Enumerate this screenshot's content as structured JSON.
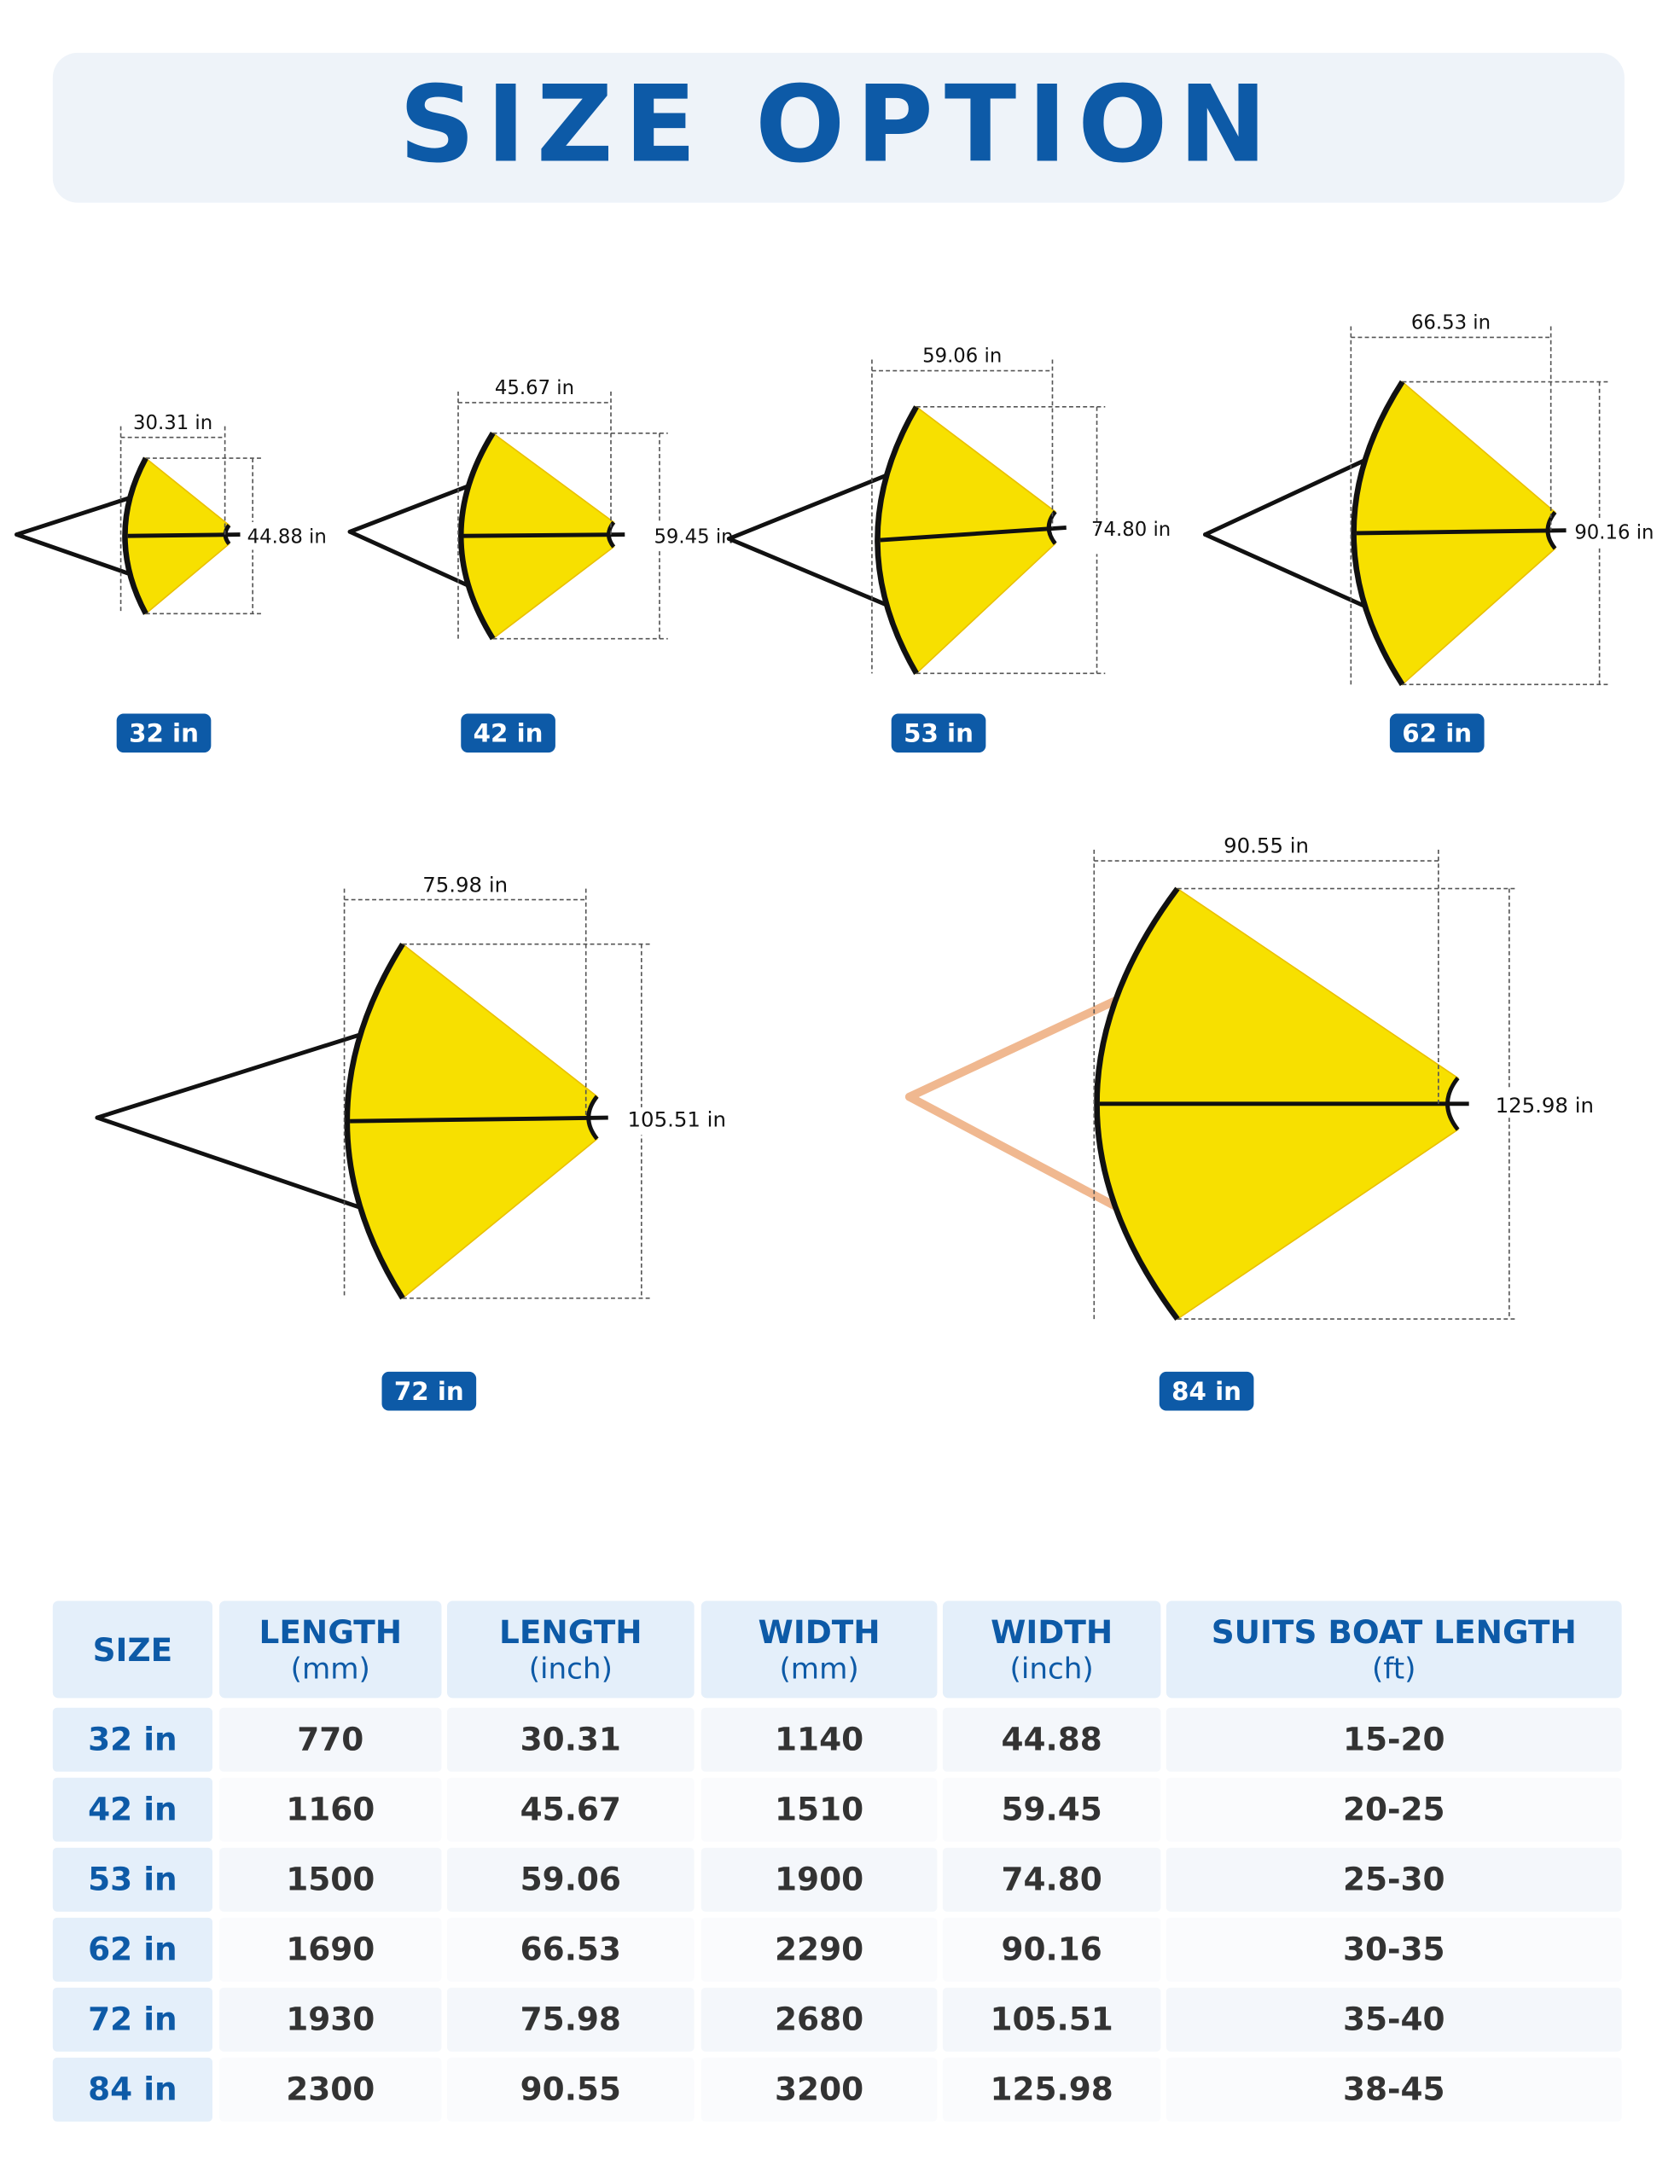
{
  "header": {
    "title": "SIZE OPTION"
  },
  "products": [
    {
      "label": "32 in",
      "length": "30.31 in",
      "width": "44.88 in"
    },
    {
      "label": "42 in",
      "length": "45.67 in",
      "width": "59.45 in"
    },
    {
      "label": "53 in",
      "length": "59.06 in",
      "width": "74.80 in"
    },
    {
      "label": "62 in",
      "length": "66.53 in",
      "width": "90.16 in"
    },
    {
      "label": "72 in",
      "length": "75.98 in",
      "width": "105.51 in"
    },
    {
      "label": "84 in",
      "length": "90.55 in",
      "width": "125.98 in"
    }
  ],
  "table": {
    "columns": [
      {
        "title": "SIZE"
      },
      {
        "title": "LENGTH",
        "unit": "(mm)"
      },
      {
        "title": "LENGTH",
        "unit": "(inch)"
      },
      {
        "title": "WIDTH",
        "unit": "(mm)"
      },
      {
        "title": "WIDTH",
        "unit": "(inch)"
      },
      {
        "title": "SUITS BOAT LENGTH",
        "unit": "(ft)"
      }
    ],
    "rows": [
      [
        "32 in",
        "770",
        "30.31",
        "1140",
        "44.88",
        "15-20"
      ],
      [
        "42 in",
        "1160",
        "45.67",
        "1510",
        "59.45",
        "20-25"
      ],
      [
        "53 in",
        "1500",
        "59.06",
        "1900",
        "74.80",
        "25-30"
      ],
      [
        "62 in",
        "1690",
        "66.53",
        "2290",
        "90.16",
        "30-35"
      ],
      [
        "72 in",
        "1930",
        "75.98",
        "2680",
        "105.51",
        "35-40"
      ],
      [
        "84 in",
        "2300",
        "90.55",
        "3200",
        "125.98",
        "38-45"
      ]
    ]
  }
}
